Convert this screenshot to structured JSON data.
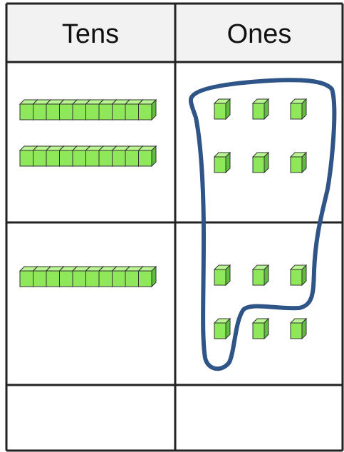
{
  "table": {
    "header": [
      "Tens",
      "Ones"
    ]
  }
}
